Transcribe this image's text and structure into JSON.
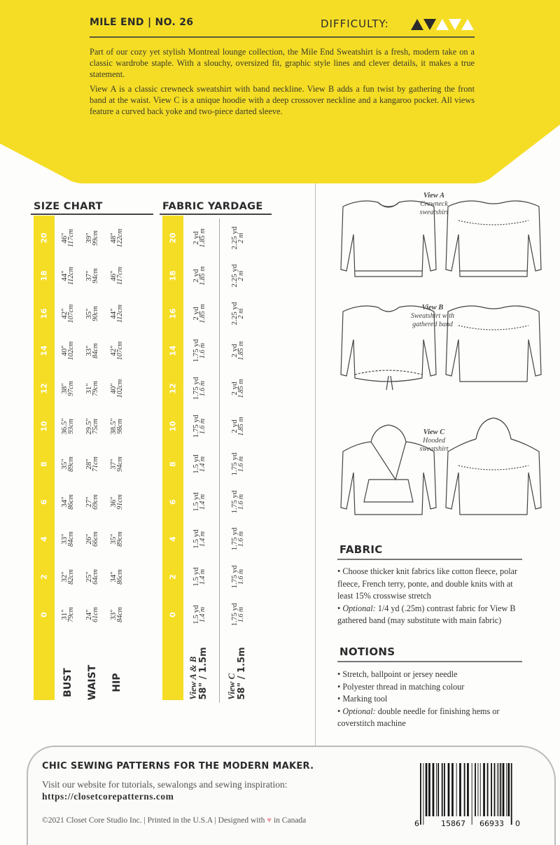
{
  "header": {
    "title": "MILE END | NO. 26",
    "difficulty_label": "DIFFICULTY:",
    "difficulty_level": 2,
    "difficulty_max": 5,
    "intro": [
      "Part of our cozy yet stylish Montreal lounge collection, the Mile End Sweatshirt is a fresh, modern take on a classic wardrobe staple. With a slouchy, oversized fit, graphic style lines and clever details, it makes a true statement.",
      "View A is a classic crewneck sweatshirt with band neckline. View B adds a fun twist by gathering the front band at the waist. View C is a unique hoodie with a deep crossover neckline and a kangaroo pocket. All views feature a curved back yoke and two-piece darted sleeve."
    ],
    "accent_color": "#f5dd25"
  },
  "size_chart": {
    "heading": "SIZE CHART",
    "sizes": [
      "20",
      "18",
      "16",
      "14",
      "12",
      "10",
      "8",
      "6",
      "4",
      "2",
      "0"
    ],
    "rows": [
      {
        "label": "BUST",
        "in": [
          "46\"",
          "44\"",
          "42\"",
          "40\"",
          "38\"",
          "36.5\"",
          "35\"",
          "34\"",
          "33\"",
          "32\"",
          "31\""
        ],
        "cm": [
          "117cm",
          "112cm",
          "107cm",
          "102cm",
          "97cm",
          "93cm",
          "89cm",
          "86cm",
          "84cm",
          "82cm",
          "79cm"
        ]
      },
      {
        "label": "WAIST",
        "in": [
          "39\"",
          "37\"",
          "35\"",
          "33\"",
          "31\"",
          "29.5\"",
          "28\"",
          "27\"",
          "26\"",
          "25\"",
          "24\""
        ],
        "cm": [
          "99cm",
          "94cm",
          "90cm",
          "84cm",
          "79cm",
          "75cm",
          "71cm",
          "69cm",
          "66cm",
          "64cm",
          "61cm"
        ]
      },
      {
        "label": "HIP",
        "in": [
          "48\"",
          "46\"",
          "44\"",
          "42\"",
          "40\"",
          "38.5\"",
          "37\"",
          "36\"",
          "35\"",
          "34\"",
          "33\""
        ],
        "cm": [
          "122cm",
          "117cm",
          "112cm",
          "107cm",
          "102cm",
          "98cm",
          "94cm",
          "91cm",
          "89cm",
          "86cm",
          "84cm"
        ]
      }
    ]
  },
  "fabric_yardage": {
    "heading": "FABRIC YARDAGE",
    "sizes": [
      "20",
      "18",
      "16",
      "14",
      "12",
      "10",
      "8",
      "6",
      "4",
      "2",
      "0"
    ],
    "rows": [
      {
        "view": "View A & B",
        "width": "58\" / 1.5m",
        "yd": [
          "2 yd",
          "2 yd",
          "2 yd",
          "1.75 yd",
          "1.75 yd",
          "1.75 yd",
          "1.5 yd",
          "1.5 yd",
          "1.5 yd",
          "1.5 yd",
          "1.5 yd"
        ],
        "m": [
          "1.85 m",
          "1.85 m",
          "1.85 m",
          "1.6 m",
          "1.6 m",
          "1.6 m",
          "1.4 m",
          "1.4 m",
          "1.4 m",
          "1.4 m",
          "1.4 m"
        ]
      },
      {
        "view": "View C",
        "width": "58\" / 1.5m",
        "yd": [
          "2.25 yd",
          "2.25 yd",
          "2.25 yd",
          "2 yd",
          "2 yd",
          "2 yd",
          "1.75 yd",
          "1.75 yd",
          "1.75 yd",
          "1.75 yd",
          "1.75 yd"
        ],
        "m": [
          "2 m",
          "2 m",
          "2 m",
          "1.85 m",
          "1.85 m",
          "1.85 m",
          "1.6 m",
          "1.6 m",
          "1.6 m",
          "1.6 m",
          "1.6 m"
        ]
      }
    ]
  },
  "views": [
    {
      "name": "View A",
      "desc": "Crewneck sweatshirt"
    },
    {
      "name": "View B",
      "desc": "Sweatshirt with gathered band"
    },
    {
      "name": "View C",
      "desc": "Hooded sweatshirt"
    }
  ],
  "fabric": {
    "heading": "FABRIC",
    "items": [
      {
        "prefix": "",
        "text": "Choose thicker knit fabrics like cotton fleece, polar fleece, French terry, ponte, and double knits with at least 15% crosswise stretch"
      },
      {
        "prefix": "Optional:",
        "text": " 1/4 yd (.25m) contrast fabric for View B gathered band (may substitute with main fabric)"
      }
    ]
  },
  "notions": {
    "heading": "NOTIONS",
    "items": [
      {
        "prefix": "",
        "text": "Stretch, ballpoint or jersey needle"
      },
      {
        "prefix": "",
        "text": "Polyester thread in matching colour"
      },
      {
        "prefix": "",
        "text": "Marking tool"
      },
      {
        "prefix": "Optional:",
        "text": " double needle for finishing hems or coverstitch machine"
      }
    ]
  },
  "footer": {
    "tagline": "CHIC SEWING PATTERNS FOR THE MODERN MAKER.",
    "visit": "Visit our website for tutorials, sewalongs and sewing inspiration:",
    "url": "https://closetcorepatterns.com",
    "copyright": "©2021 Closet Core Studio Inc. | Printed in the U.S.A | Designed with",
    "heart_color": "#e8a0a8",
    "country": "in Canada",
    "barcode": {
      "first": "6",
      "left": "15867",
      "right": "66933",
      "last": "0"
    }
  }
}
